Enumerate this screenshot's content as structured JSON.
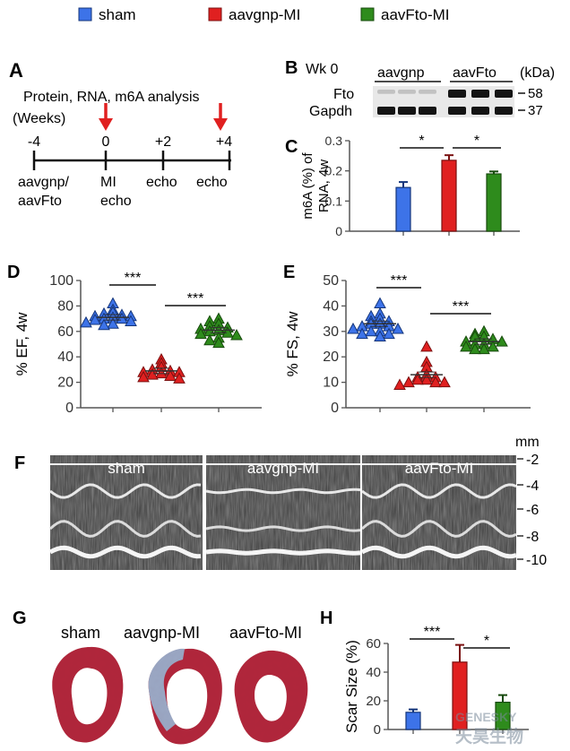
{
  "legend": [
    {
      "label": "sham",
      "color": "#3d73e8"
    },
    {
      "label": "aavgnp-MI",
      "color": "#e02020"
    },
    {
      "label": "aavFto-MI",
      "color": "#2e8b1c"
    }
  ],
  "panel_labels": {
    "A": "A",
    "B": "B",
    "C": "C",
    "D": "D",
    "E": "E",
    "F": "F",
    "G": "G",
    "H": "H"
  },
  "timeline": {
    "title": "Protein, RNA, m6A analysis",
    "unit": "(Weeks)",
    "ticks": [
      "-4",
      "0",
      "+2",
      "+4"
    ],
    "events": [
      [
        "aavgnp/",
        "aavFto"
      ],
      [
        "MI",
        "echo"
      ],
      [
        "echo"
      ],
      [
        "echo"
      ]
    ]
  },
  "western_blot": {
    "week": "Wk 0",
    "groups": [
      "aavgnp",
      "aavFto"
    ],
    "unit": "(kDa)",
    "proteins": [
      {
        "name": "Fto",
        "kda": "58",
        "relative_levels": [
          0.15,
          0.15,
          0.15,
          1,
          1,
          1
        ]
      },
      {
        "name": "Gapdh",
        "kda": "37",
        "relative_levels": [
          1,
          1,
          1,
          1,
          1,
          1
        ]
      }
    ]
  },
  "echo_labels": [
    "sham",
    "aavgnp-MI",
    "aavFto-MI"
  ],
  "echo_depth": {
    "unit": "mm",
    "ticks": [
      "-2",
      "-4",
      "-6",
      "-8",
      "-10"
    ]
  },
  "histology_labels": [
    "sham",
    "aavgnp-MI",
    "aavFto-MI"
  ],
  "watermark": {
    "line1": "GENESKY",
    "line2": "天昊生物"
  },
  "chart_data": [
    {
      "id": "C",
      "type": "bar",
      "ylabel": "m6A (%) of RNA, 4w",
      "ylim": [
        0,
        0.3
      ],
      "yticks": [
        "0",
        "0.1",
        "0.2",
        "0.3"
      ],
      "categories": [
        "sham",
        "aavgnp-MI",
        "aavFto-MI"
      ],
      "values": [
        0.145,
        0.235,
        0.19
      ],
      "errors": [
        0.018,
        0.017,
        0.008
      ],
      "significance": [
        {
          "from": 0,
          "to": 1,
          "label": "*"
        },
        {
          "from": 1,
          "to": 2,
          "label": "*"
        }
      ]
    },
    {
      "id": "D",
      "type": "scatter",
      "ylabel": "% EF, 4w",
      "ylim": [
        0,
        100
      ],
      "yticks": [
        "0",
        "20",
        "40",
        "60",
        "80",
        "100"
      ],
      "categories": [
        "sham",
        "aavgnp-MI",
        "aavFto-MI"
      ],
      "series": [
        {
          "values": [
            82,
            77,
            75,
            74,
            73,
            72,
            72,
            71,
            70,
            70,
            69,
            68,
            67,
            66,
            65
          ],
          "mean": 71
        },
        {
          "values": [
            38,
            35,
            32,
            30,
            29,
            28,
            28,
            27,
            26,
            25,
            24,
            23
          ],
          "mean": 29
        },
        {
          "values": [
            70,
            68,
            66,
            64,
            63,
            62,
            61,
            60,
            59,
            58,
            57,
            55,
            53,
            51
          ],
          "mean": 61
        }
      ],
      "significance": [
        {
          "from": 0,
          "to": 1,
          "label": "***"
        },
        {
          "from": 1,
          "to": 2,
          "label": "***"
        }
      ]
    },
    {
      "id": "E",
      "type": "scatter",
      "ylabel": "% FS, 4w",
      "ylim": [
        0,
        50
      ],
      "yticks": [
        "0",
        "10",
        "20",
        "30",
        "40",
        "50"
      ],
      "categories": [
        "sham",
        "aavgnp-MI",
        "aavFto-MI"
      ],
      "series": [
        {
          "values": [
            41,
            37,
            36,
            35,
            34,
            34,
            33,
            33,
            32,
            32,
            31,
            31,
            30,
            30,
            29,
            29,
            28
          ],
          "mean": 33
        },
        {
          "values": [
            24,
            18,
            16,
            13,
            12,
            12,
            11,
            11,
            10,
            10,
            10,
            9
          ],
          "mean": 13
        },
        {
          "values": [
            30,
            29,
            28,
            28,
            27,
            26,
            26,
            25,
            25,
            24,
            24,
            23,
            23
          ],
          "mean": 26
        }
      ],
      "significance": [
        {
          "from": 0,
          "to": 1,
          "label": "***"
        },
        {
          "from": 1,
          "to": 2,
          "label": "***"
        }
      ]
    },
    {
      "id": "H",
      "type": "bar",
      "ylabel": "Scar Size (%)",
      "ylim": [
        0,
        60
      ],
      "yticks": [
        "0",
        "20",
        "40",
        "60"
      ],
      "categories": [
        "sham",
        "aavgnp-MI",
        "aavFto-MI"
      ],
      "values": [
        12,
        47,
        19
      ],
      "errors": [
        2,
        12,
        5
      ],
      "significance": [
        {
          "from": 0,
          "to": 1,
          "label": "***"
        },
        {
          "from": 1,
          "to": 2,
          "label": "*"
        }
      ]
    }
  ]
}
